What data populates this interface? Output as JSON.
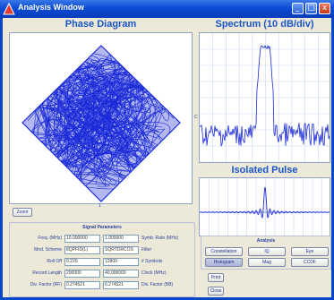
{
  "window": {
    "title": "Analysis Window",
    "controls": [
      "_",
      "□",
      "x"
    ]
  },
  "phase_diagram": {
    "title": "Phase Diagram",
    "marker_right": "C",
    "marker_bottom": "1"
  },
  "spectrum": {
    "title": "Spectrum (10 dB/div)"
  },
  "isolated_pulse": {
    "title": "Isolated Pulse"
  },
  "zoom_button": "Zoom",
  "signal_parameters": {
    "title": "Signal Parameters",
    "rows": [
      {
        "left_label": "Freq. (MHz)",
        "left_value": "10.000000",
        "right_value": "1.000000",
        "right_label": "Symb. Rate (MHz)"
      },
      {
        "left_label": "Mod. Scheme",
        "left_value": "8QPFID(L)",
        "right_value": "SQRTDRCOS",
        "right_label": "Filter"
      },
      {
        "left_label": "Roll Off",
        "left_value": "0.220",
        "right_value": "12800",
        "right_label": "# Symbols"
      },
      {
        "left_label": "Record Length",
        "left_value": "200000",
        "right_value": "40.000000",
        "right_label": "Clock (MHz)"
      },
      {
        "left_label": "Div. Factor (RF)",
        "left_value": "0.274521",
        "right_value": "0.274521",
        "right_label": "Div. Factor (BB)"
      }
    ]
  },
  "analysis": {
    "title": "Analysis",
    "buttons": [
      {
        "label": "Constellation",
        "selected": false
      },
      {
        "label": "IQ",
        "selected": false
      },
      {
        "label": "Eye",
        "selected": false
      },
      {
        "label": "Histogram",
        "selected": true
      },
      {
        "label": "Mag",
        "selected": false
      },
      {
        "label": "CCDF",
        "selected": false
      }
    ]
  },
  "print_button": "Print",
  "close_button": "Close",
  "colors": {
    "accent": "#1a55c8",
    "trace": "#1a2ad8",
    "window_frame": "#0a46c8"
  }
}
